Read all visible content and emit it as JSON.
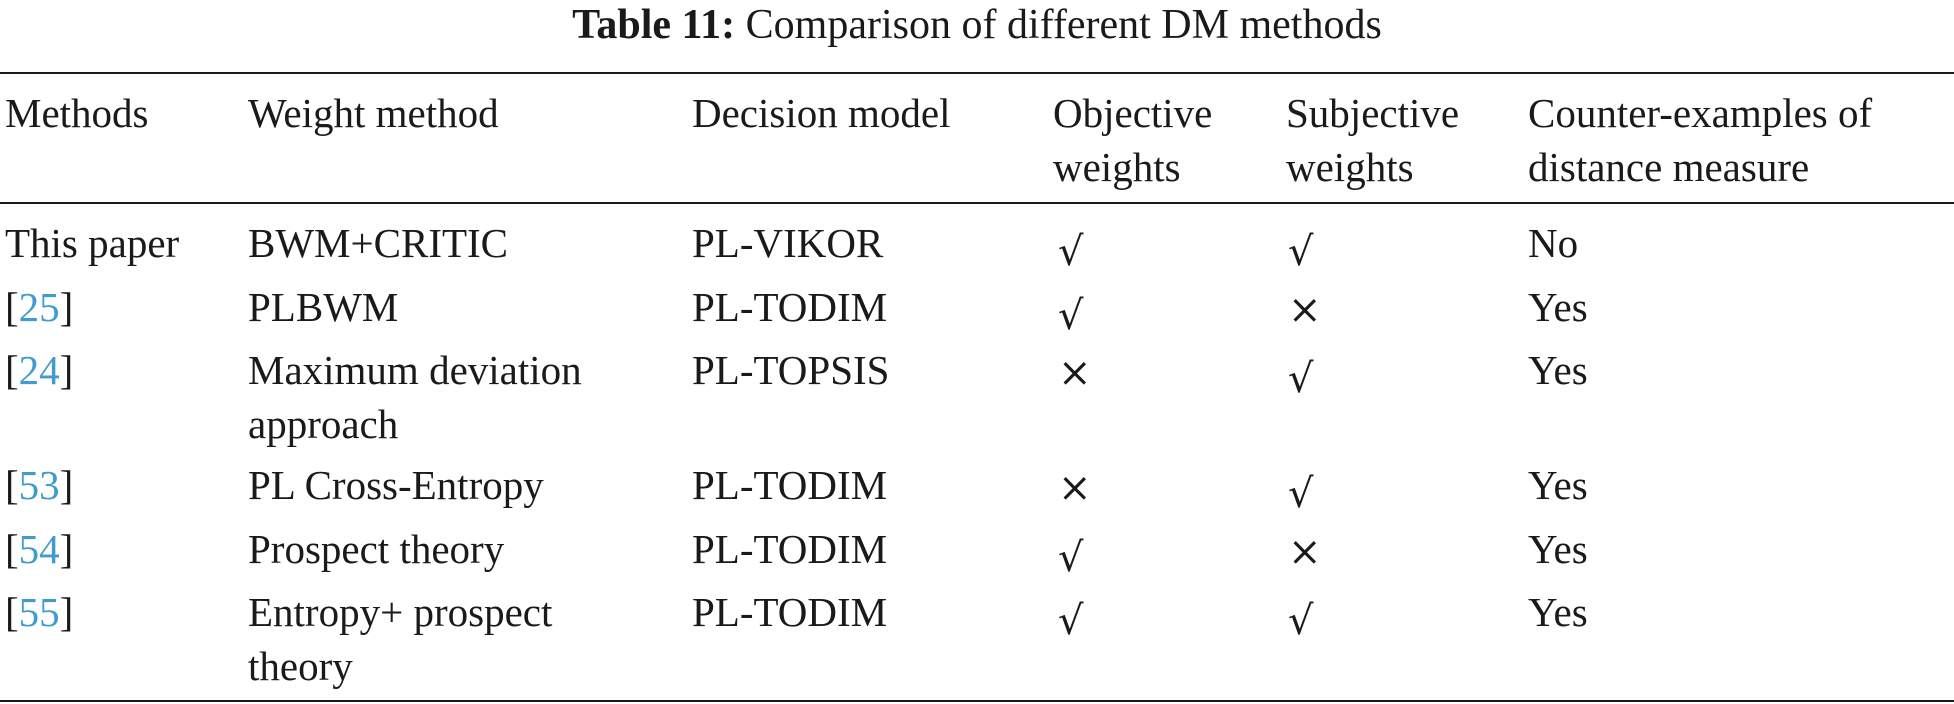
{
  "caption": {
    "label": "Table 11:",
    "text": "Comparison of different DM methods"
  },
  "header": {
    "methods": "Methods",
    "weight_method": "Weight method",
    "decision_model": "Decision model",
    "objective_1": "Objective",
    "objective_2": "weights",
    "subjective_1": "Subjective",
    "subjective_2": "weights",
    "counter_1": "Counter-examples of",
    "counter_2": "distance measure"
  },
  "symbols": {
    "check": "√",
    "cross": "×"
  },
  "rows": [
    {
      "method": "This paper",
      "weight_1": "BWM+CRITIC",
      "weight_2": "",
      "model": "PL-VIKOR",
      "objective": "check",
      "subjective": "check",
      "counter": "No"
    },
    {
      "ref": "25",
      "weight_1": "PLBWM",
      "weight_2": "",
      "model": "PL-TODIM",
      "objective": "check",
      "subjective": "cross",
      "counter": "Yes"
    },
    {
      "ref": "24",
      "weight_1": "Maximum deviation",
      "weight_2": "approach",
      "model": "PL-TOPSIS",
      "objective": "cross",
      "subjective": "check",
      "counter": "Yes"
    },
    {
      "ref": "53",
      "weight_1": "PL Cross-Entropy",
      "weight_2": "",
      "model": "PL-TODIM",
      "objective": "cross",
      "subjective": "check",
      "counter": "Yes"
    },
    {
      "ref": "54",
      "weight_1": "Prospect theory",
      "weight_2": "",
      "model": "PL-TODIM",
      "objective": "check",
      "subjective": "cross",
      "counter": "Yes"
    },
    {
      "ref": "55",
      "weight_1": "Entropy+ prospect",
      "weight_2": "theory",
      "model": "PL-TODIM",
      "objective": "check",
      "subjective": "check",
      "counter": "Yes"
    }
  ]
}
